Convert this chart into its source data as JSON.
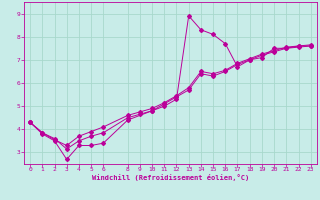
{
  "xlabel": "Windchill (Refroidissement éolien,°C)",
  "bg_color": "#c8ece8",
  "grid_color": "#a8d8cc",
  "line_color": "#bb0099",
  "ylim": [
    2.5,
    9.5
  ],
  "xlim": [
    -0.5,
    23.5
  ],
  "yticks": [
    3,
    4,
    5,
    6,
    7,
    8,
    9
  ],
  "xticks": [
    0,
    1,
    2,
    3,
    4,
    5,
    6,
    8,
    9,
    10,
    11,
    12,
    13,
    14,
    15,
    16,
    17,
    18,
    19,
    20,
    21,
    22,
    23
  ],
  "line1_x": [
    0,
    1,
    2,
    3,
    4,
    5,
    6,
    8,
    10,
    11,
    12,
    13,
    14,
    15,
    16,
    17,
    18,
    19,
    20,
    21,
    22,
    23
  ],
  "line1_y": [
    4.3,
    3.8,
    3.5,
    2.7,
    3.3,
    3.3,
    3.4,
    4.4,
    4.8,
    5.0,
    5.3,
    8.9,
    8.3,
    8.1,
    7.7,
    6.7,
    7.0,
    7.1,
    7.5,
    7.5,
    7.6,
    7.6
  ],
  "line2_x": [
    0,
    1,
    2,
    3,
    4,
    5,
    6,
    8,
    9,
    10,
    11,
    12,
    13,
    14,
    15,
    16,
    17,
    18,
    19,
    20,
    21,
    22,
    23
  ],
  "line2_y": [
    4.3,
    3.85,
    3.55,
    3.3,
    3.7,
    3.9,
    4.1,
    4.6,
    4.75,
    4.9,
    5.15,
    5.45,
    5.8,
    6.5,
    6.4,
    6.55,
    6.85,
    7.05,
    7.25,
    7.4,
    7.55,
    7.6,
    7.65
  ],
  "line3_x": [
    0,
    1,
    2,
    3,
    4,
    5,
    6,
    8,
    9,
    10,
    11,
    12,
    13,
    14,
    15,
    16,
    17,
    18,
    19,
    20,
    21,
    22,
    23
  ],
  "line3_y": [
    4.3,
    3.85,
    3.6,
    3.15,
    3.5,
    3.7,
    3.85,
    4.5,
    4.65,
    4.8,
    5.1,
    5.4,
    5.7,
    6.4,
    6.3,
    6.5,
    6.8,
    7.0,
    7.2,
    7.35,
    7.5,
    7.55,
    7.6
  ]
}
